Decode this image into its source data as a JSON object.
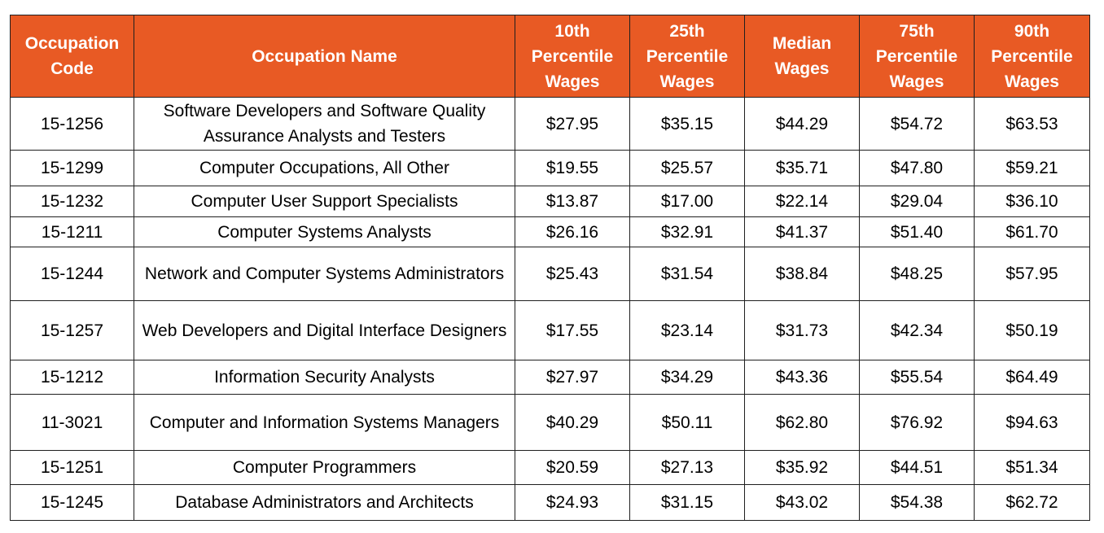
{
  "colors": {
    "header_bg": "#e85a24",
    "header_text": "#ffffff",
    "border": "#1f1f1f"
  },
  "headers": [
    "Occupation Code",
    "Occupation Name",
    "10th Percentile Wages",
    "25th Percentile Wages",
    "Median Wages",
    "75th Percentile Wages",
    "90th Percentile Wages"
  ],
  "rows": [
    {
      "code": "15-1256",
      "name": "Software Developers and Software Quality Assurance Analysts and Testers",
      "p10": "$27.95",
      "p25": "$35.15",
      "median": "$44.29",
      "p75": "$54.72",
      "p90": "$63.53"
    },
    {
      "code": "15-1299",
      "name": "Computer Occupations, All Other",
      "p10": "$19.55",
      "p25": "$25.57",
      "median": "$35.71",
      "p75": "$47.80",
      "p90": "$59.21"
    },
    {
      "code": "15-1232",
      "name": "Computer User Support Specialists",
      "p10": "$13.87",
      "p25": "$17.00",
      "median": "$22.14",
      "p75": "$29.04",
      "p90": "$36.10"
    },
    {
      "code": "15-1211",
      "name": "Computer Systems Analysts",
      "p10": "$26.16",
      "p25": "$32.91",
      "median": "$41.37",
      "p75": "$51.40",
      "p90": "$61.70"
    },
    {
      "code": "15-1244",
      "name": "Network and Computer Systems Administrators",
      "p10": "$25.43",
      "p25": "$31.54",
      "median": "$38.84",
      "p75": "$48.25",
      "p90": "$57.95"
    },
    {
      "code": "15-1257",
      "name": "Web Developers and Digital Interface Designers",
      "p10": "$17.55",
      "p25": "$23.14",
      "median": "$31.73",
      "p75": "$42.34",
      "p90": "$50.19"
    },
    {
      "code": "15-1212",
      "name": "Information Security Analysts",
      "p10": "$27.97",
      "p25": "$34.29",
      "median": "$43.36",
      "p75": "$55.54",
      "p90": "$64.49"
    },
    {
      "code": "11-3021",
      "name": "Computer and Information Systems Managers",
      "p10": "$40.29",
      "p25": "$50.11",
      "median": "$62.80",
      "p75": "$76.92",
      "p90": "$94.63"
    },
    {
      "code": "15-1251",
      "name": "Computer Programmers",
      "p10": "$20.59",
      "p25": "$27.13",
      "median": "$35.92",
      "p75": "$44.51",
      "p90": "$51.34"
    },
    {
      "code": "15-1245",
      "name": "Database Administrators and Architects",
      "p10": "$24.93",
      "p25": "$31.15",
      "median": "$43.02",
      "p75": "$54.38",
      "p90": "$62.72"
    }
  ]
}
